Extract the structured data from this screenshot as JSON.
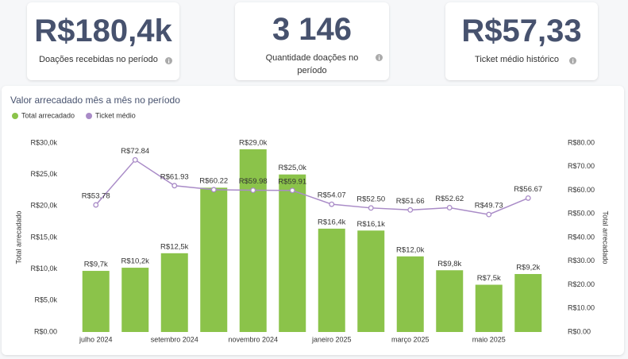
{
  "kpis": [
    {
      "value": "R$180,4k",
      "label": "Doações recebidas no período"
    },
    {
      "value": "3 146",
      "label": "Quantidade doações no período"
    },
    {
      "value": "R$57,33",
      "label": "Ticket médio histórico"
    }
  ],
  "chart_data": {
    "type": "combo",
    "title": "Valor arrecadado mês a mês no período",
    "categories": [
      "julho 2024",
      null,
      "setembro 2024",
      null,
      "novembro 2024",
      null,
      "janeiro 2025",
      null,
      "março 2025",
      null,
      "maio 2025",
      null
    ],
    "series": [
      {
        "name": "Total arrecadado",
        "type": "bar",
        "color": "#8bc34a",
        "values": [
          9.7,
          10.2,
          12.5,
          22.9,
          29.0,
          25.0,
          16.4,
          16.1,
          12.0,
          9.8,
          7.5,
          9.2
        ],
        "value_labels": [
          "R$9,7k",
          "R$10,2k",
          "R$12,5k",
          null,
          "R$29,0k",
          "R$25,0k",
          "R$16,4k",
          "R$16,1k",
          "R$12,0k",
          "R$9,8k",
          "R$7,5k",
          "R$9,2k"
        ]
      },
      {
        "name": "Ticket médio",
        "type": "line",
        "axis": "y2",
        "color": "#a98bc7",
        "values": [
          53.78,
          72.84,
          61.93,
          60.22,
          59.98,
          59.91,
          54.07,
          52.5,
          51.66,
          52.62,
          49.73,
          56.67
        ],
        "value_labels": [
          "R$53.78",
          "R$72.84",
          "R$61.93",
          "R$60.22",
          "R$59.98",
          "R$59.91",
          "R$54.07",
          "R$52.50",
          "R$51.66",
          "R$52.62",
          "R$49.73",
          "R$56.67"
        ]
      }
    ],
    "ylabel": "Total arrecadado",
    "y2label": "Total arrecadado",
    "ylim": [
      0,
      30
    ],
    "yticks": [
      {
        "value": 0,
        "label": "R$0.00"
      },
      {
        "value": 5,
        "label": "R$5,0k"
      },
      {
        "value": 10,
        "label": "R$10,0k"
      },
      {
        "value": 15,
        "label": "R$15,0k"
      },
      {
        "value": 20,
        "label": "R$20,0k"
      },
      {
        "value": 25,
        "label": "R$25,0k"
      },
      {
        "value": 30,
        "label": "R$30,0k"
      }
    ],
    "y2lim": [
      0,
      80
    ],
    "y2ticks": [
      {
        "value": 0,
        "label": "R$0.00"
      },
      {
        "value": 10,
        "label": "R$10.00"
      },
      {
        "value": 20,
        "label": "R$20.00"
      },
      {
        "value": 30,
        "label": "R$30.00"
      },
      {
        "value": 40,
        "label": "R$40.00"
      },
      {
        "value": 50,
        "label": "R$50.00"
      },
      {
        "value": 60,
        "label": "R$60.00"
      },
      {
        "value": 70,
        "label": "R$70.00"
      },
      {
        "value": 80,
        "label": "R$80.00"
      }
    ],
    "legend": "top-left"
  }
}
